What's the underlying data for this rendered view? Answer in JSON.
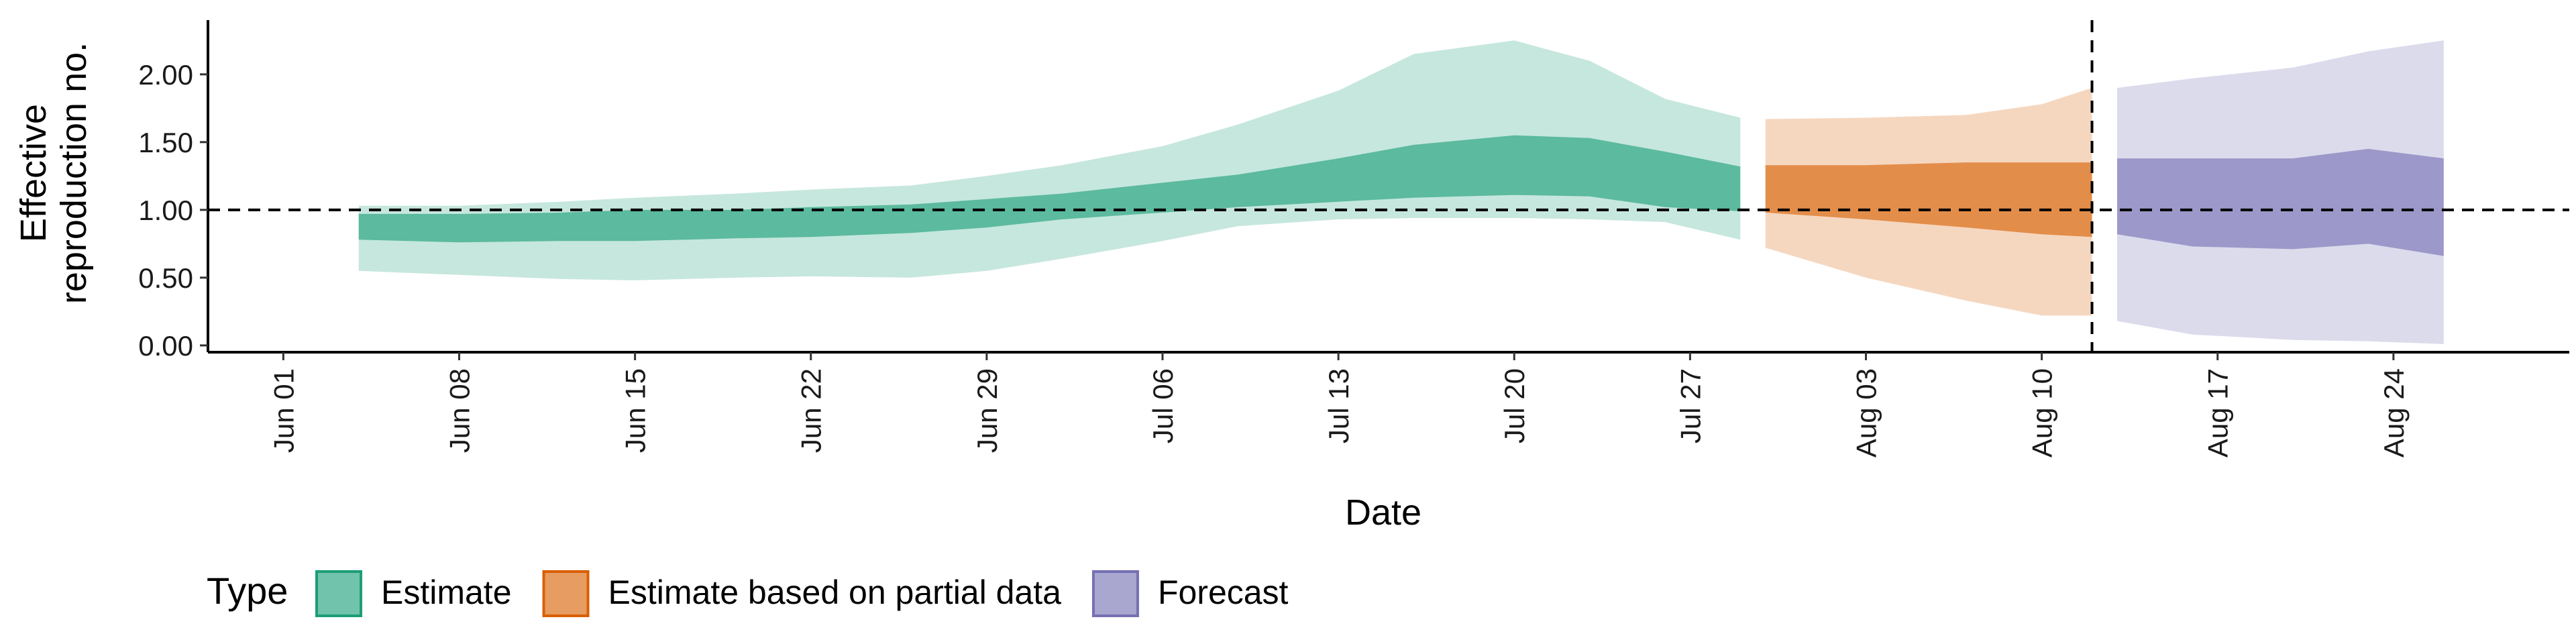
{
  "chart_data": {
    "type": "area",
    "xlabel": "Date",
    "ylabel_lines": [
      "Effective",
      "reproduction no."
    ],
    "y_ticks": [
      "0.00",
      "0.50",
      "1.00",
      "1.50",
      "2.00"
    ],
    "y_tick_values": [
      0,
      0.5,
      1,
      1.5,
      2
    ],
    "ylim": [
      -0.05,
      2.4
    ],
    "xlim": [
      "2021-05-29",
      "2021-08-31"
    ],
    "x_ticks": [
      {
        "date": "2021-06-01",
        "label": "Jun 01"
      },
      {
        "date": "2021-06-08",
        "label": "Jun 08"
      },
      {
        "date": "2021-06-15",
        "label": "Jun 15"
      },
      {
        "date": "2021-06-22",
        "label": "Jun 22"
      },
      {
        "date": "2021-06-29",
        "label": "Jun 29"
      },
      {
        "date": "2021-07-06",
        "label": "Jul 06"
      },
      {
        "date": "2021-07-13",
        "label": "Jul 13"
      },
      {
        "date": "2021-07-20",
        "label": "Jul 20"
      },
      {
        "date": "2021-07-27",
        "label": "Jul 27"
      },
      {
        "date": "2021-08-03",
        "label": "Aug 03"
      },
      {
        "date": "2021-08-10",
        "label": "Aug 10"
      },
      {
        "date": "2021-08-17",
        "label": "Aug 17"
      },
      {
        "date": "2021-08-24",
        "label": "Aug 24"
      }
    ],
    "reference_hline": 1.0,
    "reference_vline": "2021-08-12",
    "legend": {
      "title": "Type",
      "position": "bottom",
      "items": [
        {
          "label": "Estimate",
          "color": "#1b9e77"
        },
        {
          "label": "Estimate based on partial data",
          "color": "#d95f02"
        },
        {
          "label": "Forecast",
          "color": "#7570b3"
        }
      ]
    },
    "series": [
      {
        "name": "Estimate",
        "color": "#1b9e77",
        "points": [
          {
            "date": "2021-06-04",
            "lower90": 0.55,
            "lower50": 0.78,
            "upper50": 0.97,
            "upper90": 1.03
          },
          {
            "date": "2021-06-08",
            "lower90": 0.52,
            "lower50": 0.76,
            "upper50": 0.97,
            "upper90": 1.03
          },
          {
            "date": "2021-06-12",
            "lower90": 0.49,
            "lower50": 0.77,
            "upper50": 0.98,
            "upper90": 1.06
          },
          {
            "date": "2021-06-15",
            "lower90": 0.48,
            "lower50": 0.77,
            "upper50": 1.0,
            "upper90": 1.09
          },
          {
            "date": "2021-06-19",
            "lower90": 0.5,
            "lower50": 0.79,
            "upper50": 1.0,
            "upper90": 1.12
          },
          {
            "date": "2021-06-22",
            "lower90": 0.51,
            "lower50": 0.8,
            "upper50": 1.02,
            "upper90": 1.15
          },
          {
            "date": "2021-06-26",
            "lower90": 0.5,
            "lower50": 0.83,
            "upper50": 1.04,
            "upper90": 1.18
          },
          {
            "date": "2021-06-29",
            "lower90": 0.55,
            "lower50": 0.87,
            "upper50": 1.08,
            "upper90": 1.25
          },
          {
            "date": "2021-07-02",
            "lower90": 0.64,
            "lower50": 0.93,
            "upper50": 1.12,
            "upper90": 1.33
          },
          {
            "date": "2021-07-06",
            "lower90": 0.77,
            "lower50": 0.98,
            "upper50": 1.2,
            "upper90": 1.47
          },
          {
            "date": "2021-07-09",
            "lower90": 0.88,
            "lower50": 1.02,
            "upper50": 1.26,
            "upper90": 1.63
          },
          {
            "date": "2021-07-13",
            "lower90": 0.93,
            "lower50": 1.06,
            "upper50": 1.38,
            "upper90": 1.88
          },
          {
            "date": "2021-07-16",
            "lower90": 0.94,
            "lower50": 1.09,
            "upper50": 1.48,
            "upper90": 2.15
          },
          {
            "date": "2021-07-20",
            "lower90": 0.94,
            "lower50": 1.11,
            "upper50": 1.55,
            "upper90": 2.25
          },
          {
            "date": "2021-07-23",
            "lower90": 0.93,
            "lower50": 1.1,
            "upper50": 1.53,
            "upper90": 2.1
          },
          {
            "date": "2021-07-26",
            "lower90": 0.91,
            "lower50": 1.02,
            "upper50": 1.43,
            "upper90": 1.82
          },
          {
            "date": "2021-07-29",
            "lower90": 0.78,
            "lower50": 0.99,
            "upper50": 1.32,
            "upper90": 1.68
          }
        ]
      },
      {
        "name": "Estimate based on partial data",
        "color": "#d95f02",
        "points": [
          {
            "date": "2021-07-30",
            "lower90": 0.72,
            "lower50": 0.98,
            "upper50": 1.33,
            "upper90": 1.67
          },
          {
            "date": "2021-08-03",
            "lower90": 0.5,
            "lower50": 0.93,
            "upper50": 1.33,
            "upper90": 1.68
          },
          {
            "date": "2021-08-07",
            "lower90": 0.33,
            "lower50": 0.87,
            "upper50": 1.35,
            "upper90": 1.7
          },
          {
            "date": "2021-08-10",
            "lower90": 0.22,
            "lower50": 0.82,
            "upper50": 1.35,
            "upper90": 1.78
          },
          {
            "date": "2021-08-12",
            "lower90": 0.22,
            "lower50": 0.8,
            "upper50": 1.35,
            "upper90": 1.9
          }
        ]
      },
      {
        "name": "Forecast",
        "color": "#7570b3",
        "points": [
          {
            "date": "2021-08-13",
            "lower90": 0.18,
            "lower50": 0.82,
            "upper50": 1.38,
            "upper90": 1.9
          },
          {
            "date": "2021-08-16",
            "lower90": 0.08,
            "lower50": 0.73,
            "upper50": 1.38,
            "upper90": 1.97
          },
          {
            "date": "2021-08-20",
            "lower90": 0.04,
            "lower50": 0.71,
            "upper50": 1.38,
            "upper90": 2.05
          },
          {
            "date": "2021-08-23",
            "lower90": 0.03,
            "lower50": 0.75,
            "upper50": 1.45,
            "upper90": 2.17
          },
          {
            "date": "2021-08-26",
            "lower90": 0.01,
            "lower50": 0.66,
            "upper50": 1.38,
            "upper90": 2.25
          }
        ]
      }
    ]
  }
}
